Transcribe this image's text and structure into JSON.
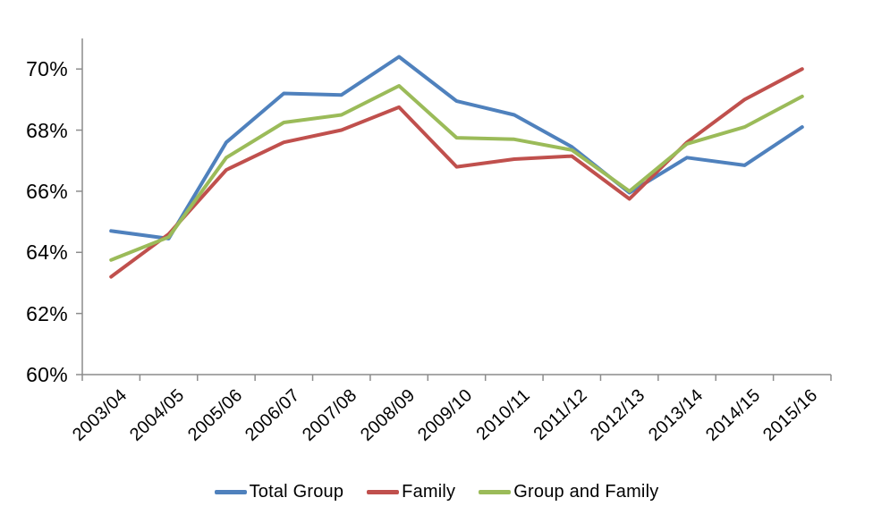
{
  "chart_data": {
    "type": "line",
    "categories": [
      "2003/04",
      "2004/05",
      "2005/06",
      "2006/07",
      "2007/08",
      "2008/09",
      "2009/10",
      "2010/11",
      "2011/12",
      "2012/13",
      "2013/14",
      "2014/15",
      "2015/16"
    ],
    "series": [
      {
        "name": "Total Group",
        "color": "#4F81BD",
        "values": [
          64.7,
          64.45,
          67.6,
          69.2,
          69.15,
          70.4,
          68.95,
          68.5,
          67.45,
          65.95,
          67.1,
          66.85,
          68.1
        ]
      },
      {
        "name": "Family",
        "color": "#C0504D",
        "values": [
          63.2,
          64.6,
          66.7,
          67.6,
          68.0,
          68.75,
          66.8,
          67.05,
          67.15,
          65.75,
          67.6,
          69.0,
          70.0
        ]
      },
      {
        "name": "Group and Family",
        "color": "#9BBB59",
        "values": [
          63.75,
          64.5,
          67.1,
          68.25,
          68.5,
          69.45,
          67.75,
          67.7,
          67.35,
          66.0,
          67.55,
          68.1,
          69.1
        ]
      }
    ],
    "ylim": [
      60,
      71
    ],
    "ytick_values": [
      60,
      62,
      64,
      66,
      68,
      70
    ],
    "ytick_labels": [
      "60%",
      "62%",
      "64%",
      "66%",
      "68%",
      "70%"
    ],
    "grid": false,
    "legend_position": "bottom",
    "axis_color": "#8C8C8C",
    "text_color": "#000000",
    "background_color": "#FFFFFF"
  }
}
